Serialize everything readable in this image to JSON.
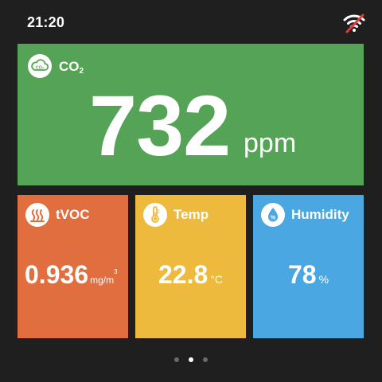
{
  "status_bar": {
    "time": "21:20",
    "wifi_icon": "wifi-off-icon",
    "wifi_strike_color": "#e53935"
  },
  "tiles": {
    "co2": {
      "icon": "co2-cloud-icon",
      "icon_text": "CO₂",
      "title": "CO",
      "title_sub": "2",
      "value": "732",
      "unit": "ppm",
      "color": "#55a356"
    },
    "tvoc": {
      "icon": "heat-waves-icon",
      "title": "tVOC",
      "value": "0.936",
      "unit": "mg/m",
      "unit_sup": "3",
      "color": "#e06e3e"
    },
    "temp": {
      "icon": "thermometer-icon",
      "title": "Temp",
      "value": "22.8",
      "unit": "°C",
      "color": "#edba3d"
    },
    "humidity": {
      "icon": "water-drop-percent-icon",
      "icon_text": "%",
      "title": "Humidity",
      "value": "78",
      "unit": "%",
      "color": "#4aa7e2"
    }
  },
  "pager": {
    "pages": 3,
    "active_index": 1
  }
}
